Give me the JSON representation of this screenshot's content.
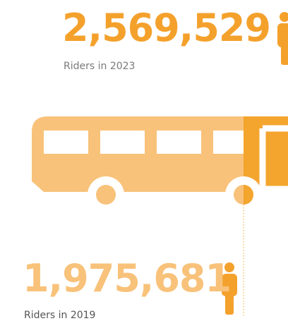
{
  "stats": [
    {
      "value": "2,569,529",
      "label": "Riders in 2023"
    },
    {
      "value": "1,975,681",
      "label": "Riders in 2019"
    }
  ]
}
